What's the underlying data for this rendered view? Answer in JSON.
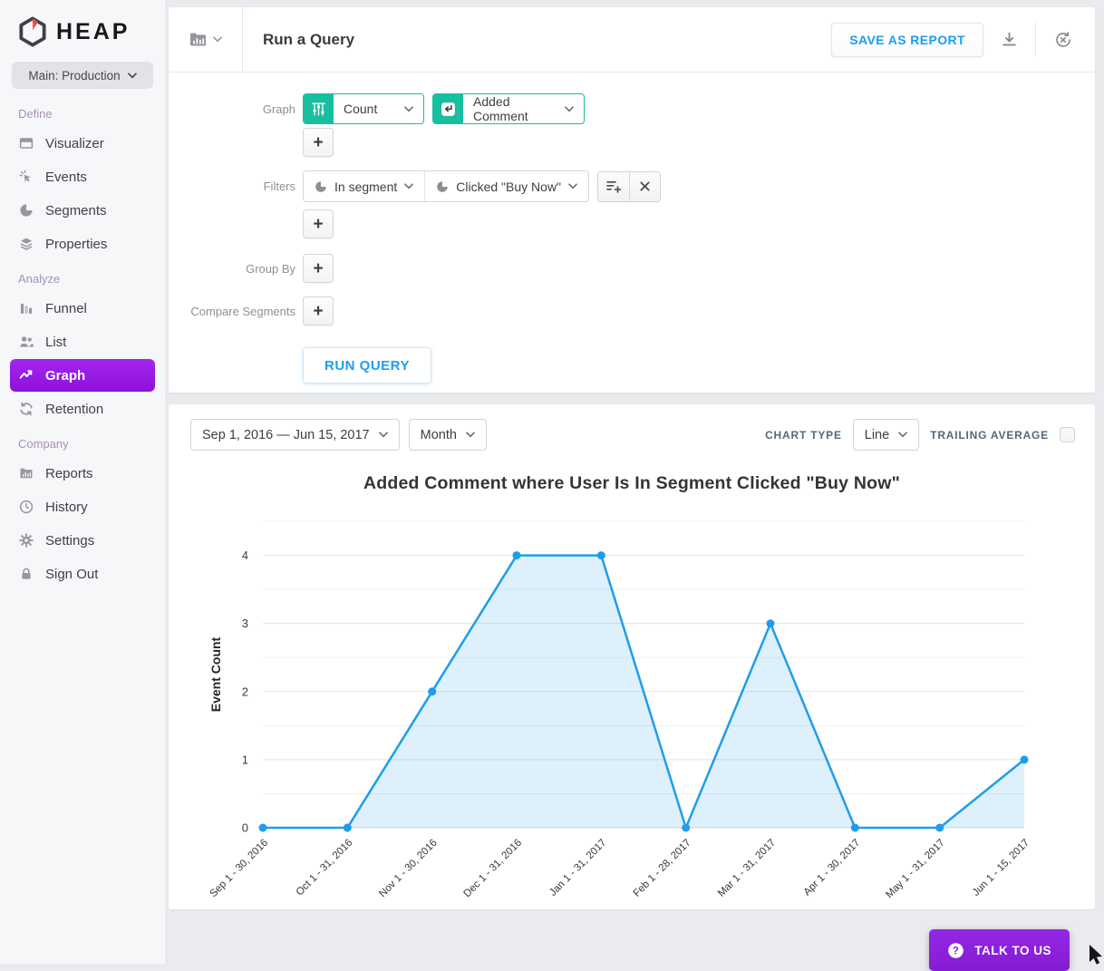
{
  "brand": {
    "name": "HEAP",
    "environment": "Main: Production"
  },
  "sidebar": {
    "sections": [
      {
        "label": "Define",
        "items": [
          {
            "label": "Visualizer",
            "icon": "window-icon",
            "active": false
          },
          {
            "label": "Events",
            "icon": "click-icon",
            "active": false
          },
          {
            "label": "Segments",
            "icon": "pie-icon",
            "active": false
          },
          {
            "label": "Properties",
            "icon": "layers-icon",
            "active": false
          }
        ]
      },
      {
        "label": "Analyze",
        "items": [
          {
            "label": "Funnel",
            "icon": "funnel-bars-icon",
            "active": false
          },
          {
            "label": "List",
            "icon": "people-icon",
            "active": false
          },
          {
            "label": "Graph",
            "icon": "line-graph-icon",
            "active": true
          },
          {
            "label": "Retention",
            "icon": "refresh-icon",
            "active": false
          }
        ]
      },
      {
        "label": "Company",
        "items": [
          {
            "label": "Reports",
            "icon": "folder-chart-icon",
            "active": false
          },
          {
            "label": "History",
            "icon": "clock-icon",
            "active": false
          },
          {
            "label": "Settings",
            "icon": "gear-icon",
            "active": false
          },
          {
            "label": "Sign Out",
            "icon": "lock-icon",
            "active": false
          }
        ]
      }
    ]
  },
  "header": {
    "title": "Run a Query",
    "save_button": "SAVE AS REPORT"
  },
  "query": {
    "graph_label": "Graph",
    "metric": "Count",
    "metric_icon": "count-icon",
    "event": "Added Comment",
    "event_icon": "return-arrow-icon",
    "filters_label": "Filters",
    "filter_operator": "In segment",
    "filter_value": "Clicked \"Buy Now\"",
    "group_by_label": "Group By",
    "compare_label": "Compare Segments",
    "add_button": "+",
    "run_button": "RUN QUERY"
  },
  "chart_controls": {
    "date_range": "Sep 1, 2016 — Jun 15, 2017",
    "granularity": "Month",
    "chart_type_label": "CHART TYPE",
    "chart_type": "Line",
    "trailing_average_label": "TRAILING AVERAGE",
    "trailing_average_checked": false
  },
  "chart_data": {
    "type": "line",
    "title": "Added Comment where User Is In Segment Clicked \"Buy Now\"",
    "ylabel": "Event Count",
    "xlabel": "",
    "categories": [
      "Sep 1 - 30, 2016",
      "Oct 1 - 31, 2016",
      "Nov 1 - 30, 2016",
      "Dec 1 - 31, 2016",
      "Jan 1 - 31, 2017",
      "Feb 1 - 28, 2017",
      "Mar 1 - 31, 2017",
      "Apr 1 - 30, 2017",
      "May 1 - 31, 2017",
      "Jun 1 - 15, 2017"
    ],
    "values": [
      0,
      0,
      2,
      4,
      4,
      0,
      3,
      0,
      0,
      1
    ],
    "yticks": [
      0,
      1,
      2,
      3,
      4
    ],
    "ylim": [
      0,
      4.5
    ],
    "grid_step": 0.5,
    "grid": true,
    "legend": false,
    "line_color": "#1e9deb",
    "fill_color": "rgba(30,157,235,0.15)"
  },
  "footer": {
    "talk_button": "TALK TO US"
  },
  "colors": {
    "accent_blue": "#1d9ded",
    "teal": "#18bf9f",
    "purple_active": "#9318e0",
    "page_bg": "#e9ebee"
  }
}
